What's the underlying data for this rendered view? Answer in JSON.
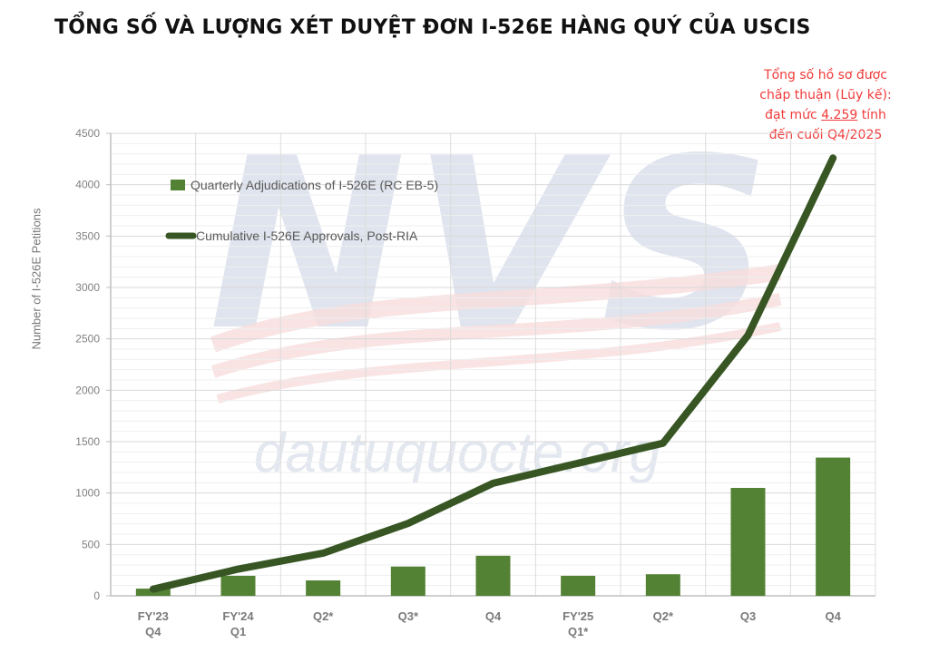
{
  "title": "TỔNG SỐ VÀ LƯỢNG XÉT DUYỆT ĐƠN I-526E HÀNG QUÝ CỦA USCIS",
  "annotation": {
    "line1": "Tổng số hồ sơ được",
    "line2": "chấp thuận (Lũy kế):",
    "line3_prefix": "đạt mức ",
    "line3_value": "4.259",
    "line3_suffix": " tính",
    "line4": "đến cuối Q4/2025",
    "color": "#f23b3b"
  },
  "watermark": {
    "logo": "NVS",
    "site": "dautuquocte.org"
  },
  "colors": {
    "bar": "#548235",
    "line": "#375623",
    "grid": "#d9d9d9",
    "axis_text": "#808080"
  },
  "chart_data": {
    "type": "bar",
    "title": "TỔNG SỐ VÀ LƯỢNG XÉT DUYỆT ĐƠN I-526E HÀNG QUÝ CỦA USCIS",
    "xlabel": "",
    "ylabel": "Number of I-526E Petitions",
    "ylim": [
      0,
      4500
    ],
    "yticks": [
      0,
      500,
      1000,
      1500,
      2000,
      2500,
      3000,
      3500,
      4000,
      4500
    ],
    "grid": true,
    "legend_position": "upper left",
    "categories": [
      "FY'23 Q4",
      "FY'24 Q1",
      "Q2*",
      "Q3*",
      "Q4",
      "FY'25 Q1*",
      "Q2*",
      "Q3",
      "Q4"
    ],
    "category_lines": [
      [
        "FY'23",
        "Q4"
      ],
      [
        "FY'24",
        "Q1"
      ],
      [
        "Q2*"
      ],
      [
        "Q3*"
      ],
      [
        "Q4"
      ],
      [
        "FY'25",
        "Q1*"
      ],
      [
        "Q2*"
      ],
      [
        "Q3"
      ],
      [
        "Q4"
      ]
    ],
    "series": [
      {
        "name": "Quarterly Adjudications of I-526E (RC EB-5)",
        "type": "bar",
        "values": [
          70,
          195,
          150,
          285,
          390,
          195,
          210,
          1050,
          1345
        ]
      },
      {
        "name": "Cumulative I-526E Approvals, Post-RIA",
        "type": "line",
        "values": [
          65,
          260,
          415,
          705,
          1095,
          1290,
          1485,
          2535,
          4259
        ]
      }
    ],
    "annotations": [
      "Tổng số hồ sơ được chấp thuận (Lũy kế): đạt mức 4.259 tính đến cuối Q4/2025"
    ]
  }
}
